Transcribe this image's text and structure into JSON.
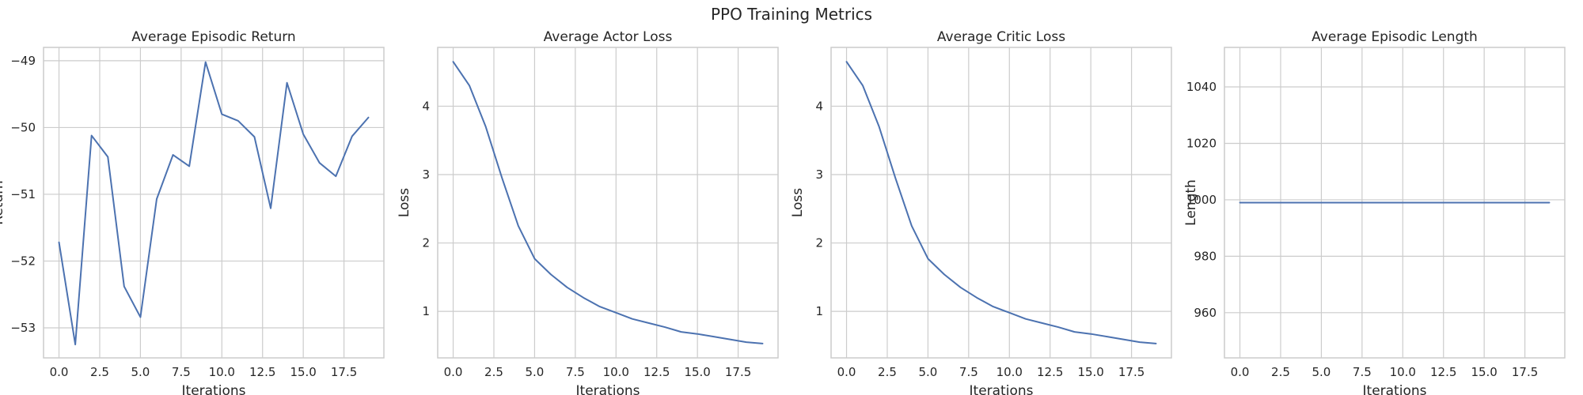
{
  "figure": {
    "suptitle": "PPO Training Metrics"
  },
  "chart_data": [
    {
      "type": "line",
      "title": "Average Episodic Return",
      "xlabel": "Iterations",
      "ylabel": "Return",
      "xlim": [
        -0.95,
        19.95
      ],
      "ylim": [
        -53.45,
        -48.8
      ],
      "xticks": [
        0.0,
        2.5,
        5.0,
        7.5,
        10.0,
        12.5,
        15.0,
        17.5
      ],
      "xtick_labels": [
        "0.0",
        "2.5",
        "5.0",
        "7.5",
        "10.0",
        "12.5",
        "15.0",
        "17.5"
      ],
      "yticks": [
        -53,
        -52,
        -51,
        -50,
        -49
      ],
      "ytick_labels": [
        "−53",
        "−52",
        "−51",
        "−50",
        "−49"
      ],
      "grid": true,
      "color": "#4c72b0",
      "x": [
        0,
        1,
        2,
        3,
        4,
        5,
        6,
        7,
        8,
        9,
        10,
        11,
        12,
        13,
        14,
        15,
        16,
        17,
        18,
        19
      ],
      "values": [
        -51.72,
        -53.25,
        -50.12,
        -50.44,
        -52.38,
        -52.84,
        -51.07,
        -50.41,
        -50.58,
        -49.02,
        -49.8,
        -49.9,
        -50.14,
        -51.21,
        -49.33,
        -50.1,
        -50.53,
        -50.73,
        -50.13,
        -49.85
      ]
    },
    {
      "type": "line",
      "title": "Average Actor Loss",
      "xlabel": "Iterations",
      "ylabel": "Loss",
      "xlim": [
        -0.95,
        19.95
      ],
      "ylim": [
        0.32,
        4.86
      ],
      "xticks": [
        0.0,
        2.5,
        5.0,
        7.5,
        10.0,
        12.5,
        15.0,
        17.5
      ],
      "xtick_labels": [
        "0.0",
        "2.5",
        "5.0",
        "7.5",
        "10.0",
        "12.5",
        "15.0",
        "17.5"
      ],
      "yticks": [
        1,
        2,
        3,
        4
      ],
      "ytick_labels": [
        "1",
        "2",
        "3",
        "4"
      ],
      "grid": true,
      "color": "#4c72b0",
      "x": [
        0,
        1,
        2,
        3,
        4,
        5,
        6,
        7,
        8,
        9,
        10,
        11,
        12,
        13,
        14,
        15,
        16,
        17,
        18,
        19
      ],
      "values": [
        4.65,
        4.3,
        3.7,
        2.95,
        2.25,
        1.77,
        1.54,
        1.35,
        1.2,
        1.07,
        0.98,
        0.89,
        0.83,
        0.77,
        0.7,
        0.67,
        0.63,
        0.59,
        0.55,
        0.53
      ]
    },
    {
      "type": "line",
      "title": "Average Critic Loss",
      "xlabel": "Iterations",
      "ylabel": "Loss",
      "xlim": [
        -0.95,
        19.95
      ],
      "ylim": [
        0.32,
        4.86
      ],
      "xticks": [
        0.0,
        2.5,
        5.0,
        7.5,
        10.0,
        12.5,
        15.0,
        17.5
      ],
      "xtick_labels": [
        "0.0",
        "2.5",
        "5.0",
        "7.5",
        "10.0",
        "12.5",
        "15.0",
        "17.5"
      ],
      "yticks": [
        1,
        2,
        3,
        4
      ],
      "ytick_labels": [
        "1",
        "2",
        "3",
        "4"
      ],
      "grid": true,
      "color": "#4c72b0",
      "x": [
        0,
        1,
        2,
        3,
        4,
        5,
        6,
        7,
        8,
        9,
        10,
        11,
        12,
        13,
        14,
        15,
        16,
        17,
        18,
        19
      ],
      "values": [
        4.65,
        4.3,
        3.7,
        2.95,
        2.25,
        1.77,
        1.54,
        1.35,
        1.2,
        1.07,
        0.98,
        0.89,
        0.83,
        0.77,
        0.7,
        0.67,
        0.63,
        0.59,
        0.55,
        0.53
      ]
    },
    {
      "type": "line",
      "title": "Average Episodic Length",
      "xlabel": "Iterations",
      "ylabel": "Length",
      "xlim": [
        -0.95,
        19.95
      ],
      "ylim": [
        944,
        1054
      ],
      "xticks": [
        0.0,
        2.5,
        5.0,
        7.5,
        10.0,
        12.5,
        15.0,
        17.5
      ],
      "xtick_labels": [
        "0.0",
        "2.5",
        "5.0",
        "7.5",
        "10.0",
        "12.5",
        "15.0",
        "17.5"
      ],
      "yticks": [
        960,
        980,
        1000,
        1020,
        1040
      ],
      "ytick_labels": [
        "960",
        "980",
        "1000",
        "1020",
        "1040"
      ],
      "grid": true,
      "color": "#4c72b0",
      "x": [
        0,
        1,
        2,
        3,
        4,
        5,
        6,
        7,
        8,
        9,
        10,
        11,
        12,
        13,
        14,
        15,
        16,
        17,
        18,
        19
      ],
      "values": [
        999,
        999,
        999,
        999,
        999,
        999,
        999,
        999,
        999,
        999,
        999,
        999,
        999,
        999,
        999,
        999,
        999,
        999,
        999,
        999
      ]
    }
  ]
}
